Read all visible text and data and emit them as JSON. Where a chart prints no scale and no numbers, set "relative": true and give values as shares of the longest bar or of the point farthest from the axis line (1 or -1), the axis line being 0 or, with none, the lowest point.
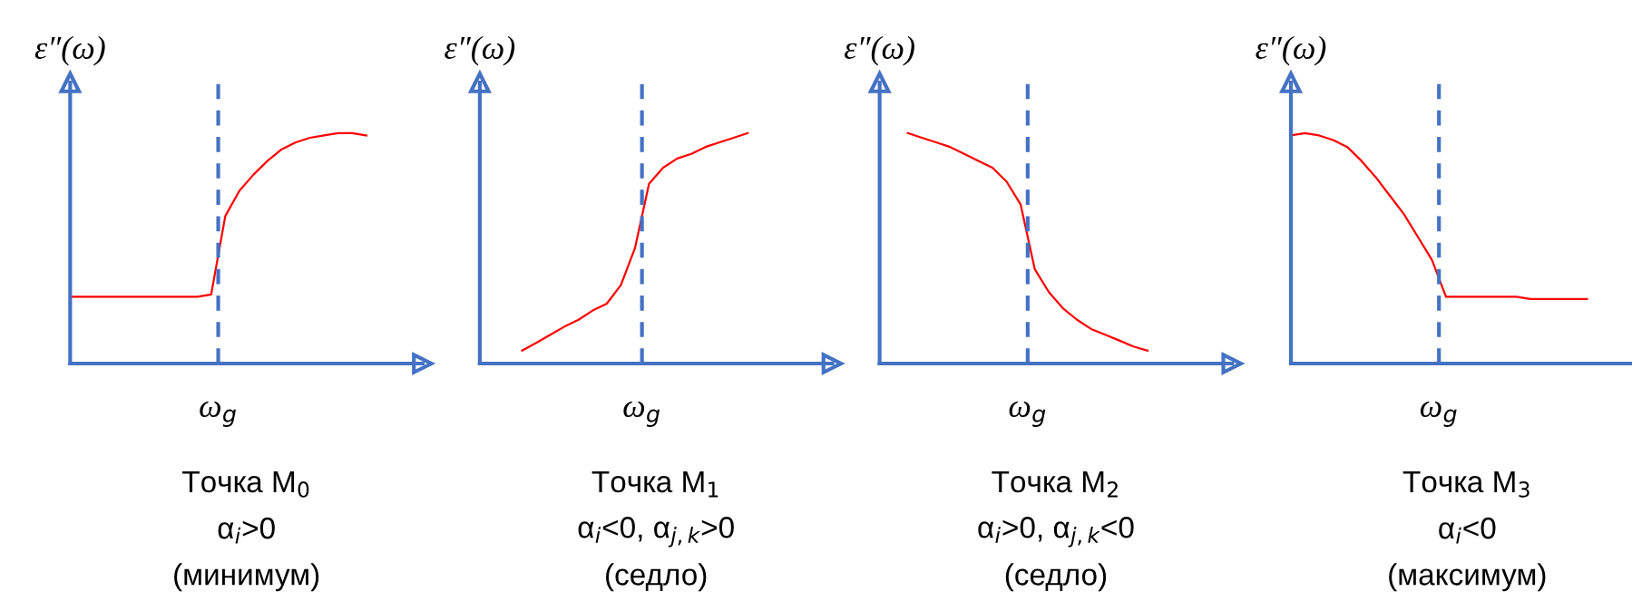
{
  "chart_data": [
    {
      "type": "line",
      "relative": true,
      "ylabel": "ε″(ω)",
      "categories": [
        null,
        null,
        null,
        null,
        null,
        null,
        null,
        null,
        null,
        null,
        null,
        null,
        null,
        null,
        null,
        null,
        null,
        null,
        null,
        null,
        null,
        null,
        null,
        null,
        null
      ],
      "series": [
        {
          "color": "#ff0000",
          "values": [
            0.29,
            0.29,
            0.29,
            0.29,
            0.29,
            0.29,
            0.29,
            0.29,
            0.29,
            0.29,
            0.3,
            0.64,
            0.75,
            0.82,
            0.88,
            0.93,
            0.96,
            0.98,
            0.99,
            1.0,
            1.0,
            0.99,
            null,
            null,
            null
          ]
        }
      ],
      "annotations": [
        "ω$_{g}$",
        "Точка M$_{0}$",
        "α$_{i}$>0",
        "(минимум)"
      ]
    },
    {
      "type": "line",
      "relative": true,
      "ylabel": "ε″(ω)",
      "categories": [
        null,
        null,
        null,
        null,
        null,
        null,
        null,
        null,
        null,
        null,
        null,
        null,
        null,
        null,
        null,
        null,
        null,
        null,
        null,
        null,
        null,
        null,
        null,
        null,
        null
      ],
      "series": [
        {
          "color": "#ff0000",
          "values": [
            null,
            null,
            null,
            0.056,
            0.09,
            0.125,
            0.16,
            0.19,
            0.23,
            0.26,
            0.34,
            0.5,
            0.78,
            0.85,
            0.89,
            0.91,
            0.94,
            0.96,
            0.98,
            1.0,
            null,
            null,
            null,
            null,
            null
          ]
        }
      ],
      "annotations": [
        "ω$_{g}$",
        "Точка M$_{1}$",
        "α$_{i}$<0, α$_{j,k}$>0",
        "(седло)"
      ]
    },
    {
      "type": "line",
      "relative": true,
      "ylabel": "ε″(ω)",
      "categories": [
        null,
        null,
        null,
        null,
        null,
        null,
        null,
        null,
        null,
        null,
        null,
        null,
        null,
        null,
        null,
        null,
        null,
        null,
        null,
        null,
        null,
        null,
        null,
        null,
        null
      ],
      "series": [
        {
          "color": "#ff0000",
          "values": [
            null,
            null,
            1.0,
            0.98,
            0.96,
            0.94,
            0.91,
            0.88,
            0.85,
            0.79,
            0.69,
            0.41,
            0.31,
            0.24,
            0.19,
            0.15,
            0.125,
            0.1,
            0.074,
            0.056,
            null,
            null,
            null,
            null,
            null
          ]
        }
      ],
      "annotations": [
        "ω$_{g}$",
        "Точка M$_{2}$",
        "α$_{i}$>0, α$_{j,k}$<0",
        "(седло)"
      ]
    },
    {
      "type": "line",
      "relative": true,
      "ylabel": "ε″(ω)",
      "categories": [
        null,
        null,
        null,
        null,
        null,
        null,
        null,
        null,
        null,
        null,
        null,
        null,
        null,
        null,
        null,
        null,
        null,
        null,
        null,
        null,
        null,
        null,
        null,
        null,
        null
      ],
      "series": [
        {
          "color": "#ff0000",
          "values": [
            0.99,
            1.0,
            0.99,
            0.97,
            0.94,
            0.88,
            0.81,
            0.73,
            0.65,
            0.55,
            0.45,
            0.29,
            0.29,
            0.29,
            0.29,
            0.29,
            0.29,
            0.28,
            0.28,
            0.28,
            0.28,
            0.28,
            null,
            null,
            null
          ]
        }
      ],
      "annotations": [
        "ω$_{g}$",
        "Точка M$_{3}$",
        "α$_{i}$<0",
        "(максимум)"
      ]
    }
  ]
}
